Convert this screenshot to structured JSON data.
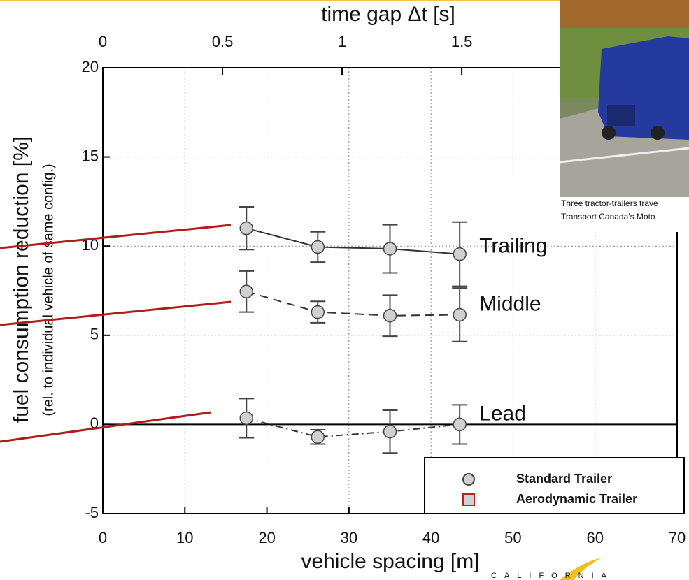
{
  "chart_data": {
    "type": "line",
    "x_label": "vehicle spacing [m]",
    "x2_label": "time gap Δt [s]",
    "y_label": "fuel consumption reduction [%]",
    "y_sublabel": "(rel. to individual vehicle of same config.)",
    "xlim": [
      0,
      70
    ],
    "xticks": [
      0,
      10,
      20,
      30,
      40,
      50,
      60,
      70
    ],
    "x2lim": [
      0,
      2.4
    ],
    "x2ticks": [
      0,
      0.5,
      1,
      1.5
    ],
    "ylim": [
      -5,
      20
    ],
    "yticks": [
      -5,
      0,
      5,
      10,
      15,
      20
    ],
    "grid": true,
    "marker_color": "#d0d0d0",
    "series": [
      {
        "name": "Trailing",
        "color": "#333333",
        "dash": "solid",
        "x": [
          17.5,
          26.2,
          35,
          43.5
        ],
        "values": [
          11,
          9.95,
          9.85,
          9.55
        ],
        "errors": [
          1.2,
          0.85,
          1.35,
          1.8
        ]
      },
      {
        "name": "Middle",
        "color": "#333333",
        "dash": "dashed",
        "x": [
          17.5,
          26.2,
          35,
          43.5
        ],
        "values": [
          7.45,
          6.3,
          6.1,
          6.15
        ],
        "errors": [
          1.15,
          0.6,
          1.15,
          1.5
        ]
      },
      {
        "name": "Lead",
        "color": "#333333",
        "dash": "dashdot",
        "x": [
          17.5,
          26.2,
          35,
          43.5
        ],
        "values": [
          0.35,
          -0.7,
          -0.4,
          0
        ],
        "errors": [
          1.1,
          0.4,
          1.2,
          1.1
        ]
      }
    ],
    "legend": [
      {
        "label": "Standard Trailer",
        "marker": "circle",
        "color": "#d0d0d0",
        "edge": "#444444"
      },
      {
        "label": "Aerodynamic Trailer",
        "marker": "square",
        "color": "#d0d0d0",
        "edge": "#c02020"
      }
    ]
  },
  "photo": {
    "caption": [
      "Three tractor-trailers trave",
      "Transport Canada's Moto"
    ]
  },
  "logo": "CALIFORNIA"
}
